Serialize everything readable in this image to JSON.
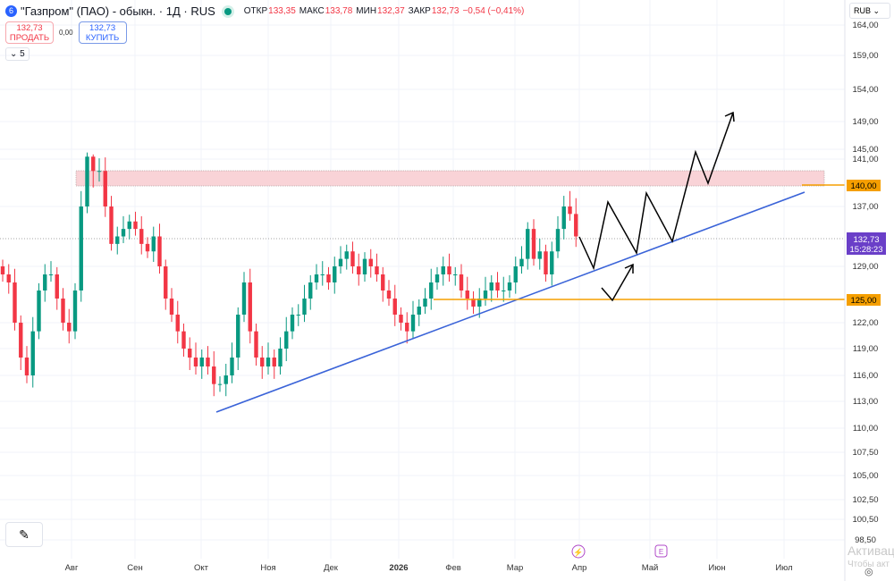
{
  "header": {
    "logo": "6",
    "title": "\"Газпром\" (ПАО) - обыкн. · 1Д · RUS",
    "open_label": "ОТКР",
    "open": "133,35",
    "high_label": "МАКС",
    "high": "133,78",
    "low_label": "МИН",
    "low": "132,37",
    "close_label": "ЗАКР",
    "close": "132,73",
    "change": "−0,54 (−0,41%)"
  },
  "trade": {
    "sell_price": "132,73",
    "sell_label": "ПРОДАТЬ",
    "spread": "0,00",
    "buy_price": "132,73",
    "buy_label": "КУПИТЬ"
  },
  "indicators_toggle": "⌄ 5",
  "currency": "RUB ⌄",
  "watermark": {
    "line1": "Активац",
    "line2": "Чтобы акт"
  },
  "colors": {
    "up": "#089981",
    "down": "#f23645",
    "trend": "#3a63d8",
    "level": "#f59f00",
    "zone": "#f9d3d7",
    "price_badge": "#6a3fc8"
  },
  "chart_data": {
    "type": "candlestick",
    "title": "\"Газпром\" (ПАО) - обыкн. · 1Д · RUS",
    "y_ticks": [
      "164,00",
      "159,00",
      "154,00",
      "149,00",
      "145,00",
      "141,00",
      "137,00",
      "129,00",
      "122,00",
      "119,00",
      "116,00",
      "113,00",
      "110,00",
      "107,50",
      "105,00",
      "102,50",
      "100,50",
      "98,50"
    ],
    "x_ticks": [
      "Авг",
      "Сен",
      "Окт",
      "Ноя",
      "Дек",
      "2026",
      "Фев",
      "Мар",
      "Апр",
      "Май",
      "Июн",
      "Июл"
    ],
    "closes": [
      128,
      127,
      122,
      118,
      116,
      121,
      126,
      128,
      128,
      125,
      122,
      121,
      126,
      137,
      142,
      140,
      140,
      137,
      132,
      133,
      134,
      135,
      134,
      132,
      131,
      133,
      129,
      125,
      123,
      121,
      119,
      118,
      117,
      118,
      117,
      115,
      115,
      116,
      118,
      123,
      127,
      121,
      118,
      117,
      118,
      117,
      119,
      121,
      123,
      123,
      125,
      127,
      128,
      128,
      127,
      129,
      130,
      131,
      129,
      128,
      130,
      129,
      128,
      126,
      125,
      123,
      122,
      121,
      123,
      124,
      125,
      127,
      128,
      129,
      128,
      128,
      126,
      125,
      124,
      125,
      126,
      127,
      126,
      126,
      127,
      129,
      130,
      134,
      130,
      131,
      128,
      131,
      134,
      137,
      136,
      133
    ],
    "first_open": 129,
    "last_price": "132,73",
    "last_time": "15:28:23",
    "levels": [
      {
        "label": "140,00",
        "value": 140
      },
      {
        "label": "125,00",
        "value": 125
      }
    ],
    "resistance_zone": [
      139.6,
      141.6
    ],
    "grid": true
  }
}
